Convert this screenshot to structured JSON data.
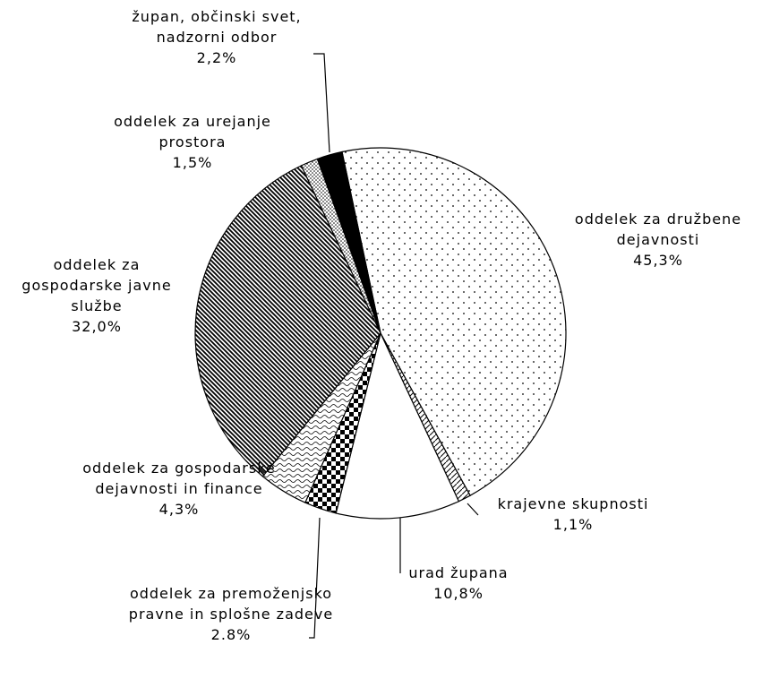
{
  "chart_data": {
    "type": "pie",
    "categories": [
      "oddelek za družbene dejavnosti",
      "krajevne skupnosti",
      "urad župana",
      "oddelek za premoženjsko pravne in splošne zadeve",
      "oddelek za gospodarske dejavnosti in finance",
      "oddelek za gospodarske javne službe",
      "oddelek za urejanje prostora",
      "župan, občinski svet, nadzorni odbor"
    ],
    "values": [
      45.3,
      1.1,
      10.8,
      2.8,
      4.3,
      32.0,
      1.5,
      2.2
    ],
    "value_labels": [
      "45,3%",
      "1,1%",
      "10,8%",
      "2.8%",
      "4,3%",
      "32,0%",
      "1,5%",
      "2,2%"
    ]
  }
}
